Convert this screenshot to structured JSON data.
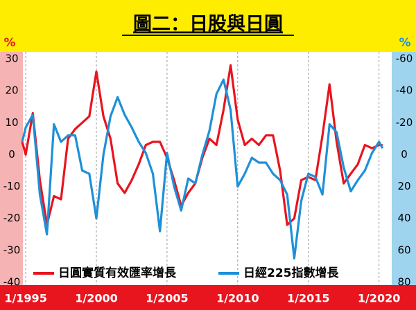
{
  "chart_data": {
    "type": "line",
    "title": "圖二：日股與日圓",
    "y_label": "%",
    "y2_label": "%",
    "x": [
      1994.75,
      1995,
      1995.5,
      1996,
      1996.5,
      1997,
      1997.5,
      1998,
      1998.5,
      1999,
      1999.5,
      2000,
      2000.5,
      2001,
      2001.5,
      2002,
      2002.5,
      2003,
      2003.5,
      2004,
      2004.5,
      2005,
      2005.5,
      2006,
      2006.5,
      2007,
      2007.5,
      2008,
      2008.5,
      2009,
      2009.5,
      2010,
      2010.5,
      2011,
      2011.5,
      2012,
      2012.5,
      2013,
      2013.5,
      2014,
      2014.5,
      2015,
      2015.5,
      2016,
      2016.5,
      2017,
      2017.5,
      2018,
      2018.5,
      2019,
      2019.5,
      2020,
      2020.25
    ],
    "series": [
      {
        "name": "日圓實質有效匯率增長",
        "color": "#e8141e",
        "values": [
          4,
          0,
          13,
          -8,
          -22,
          -13,
          -14,
          5,
          8,
          10,
          12,
          26,
          12,
          5,
          -9,
          -12,
          -8,
          -3,
          3,
          4,
          4,
          -1,
          -8,
          -16,
          -12,
          -9,
          -1,
          5,
          3,
          14,
          28,
          11,
          3,
          5,
          3,
          6,
          6,
          -5,
          -22,
          -20,
          -8,
          -7,
          -8,
          6,
          22,
          4,
          -9,
          -6,
          -3,
          3,
          2,
          3,
          3
        ]
      },
      {
        "name": "日經225指數增長",
        "color": "#1e90d8",
        "axis": "y2",
        "values": [
          -8,
          -17,
          -25,
          25,
          50,
          -19,
          -8,
          -12,
          -12,
          10,
          12,
          40,
          0,
          -24,
          -36,
          -25,
          -17,
          -8,
          -1,
          12,
          48,
          -1,
          20,
          35,
          15,
          18,
          0,
          -15,
          -38,
          -47,
          -28,
          20,
          12,
          2,
          5,
          5,
          12,
          16,
          25,
          65,
          29,
          12,
          14,
          25,
          -19,
          -14,
          8,
          23,
          16,
          10,
          -1,
          -8,
          -4
        ]
      }
    ],
    "xlim": [
      1994.8,
      2020.9
    ],
    "xticks": [
      {
        "value": 1995,
        "label": "1/1995"
      },
      {
        "value": 2000,
        "label": "1/2000"
      },
      {
        "value": 2005,
        "label": "1/2005"
      },
      {
        "value": 2010,
        "label": "1/2010"
      },
      {
        "value": 2015,
        "label": "1/2015"
      },
      {
        "value": 2020,
        "label": "1/2020"
      }
    ],
    "ylim": [
      -40,
      30
    ],
    "yticks": [
      -40,
      -30,
      -20,
      -10,
      0,
      10,
      20,
      30
    ],
    "y2lim": [
      80,
      -60
    ],
    "y2ticks": [
      80,
      60,
      40,
      20,
      0,
      -20,
      -40,
      -60
    ],
    "grid": true
  }
}
